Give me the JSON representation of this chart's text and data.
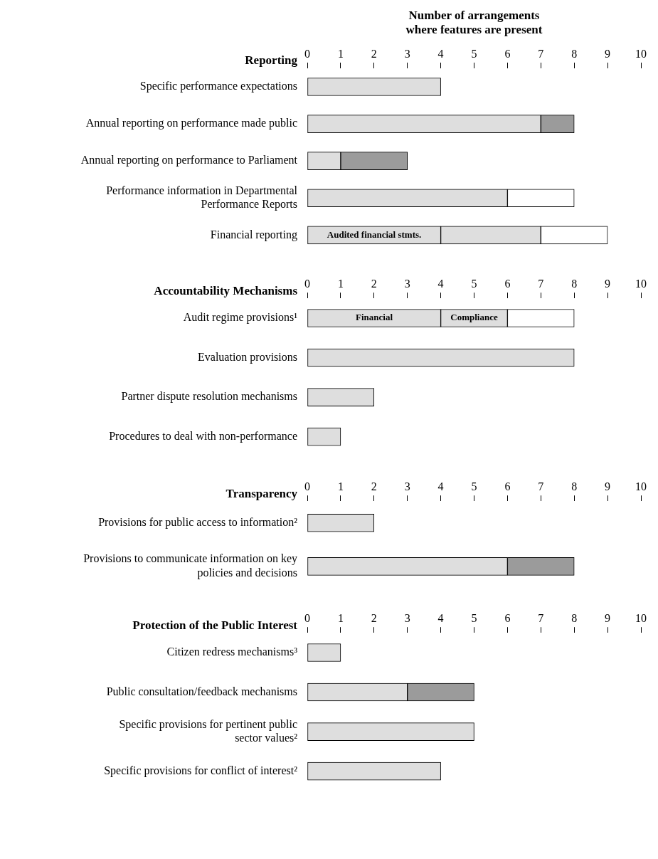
{
  "chart_data": [
    {
      "type": "bar",
      "orientation": "horizontal",
      "stacked": true,
      "title": "Reporting",
      "xlabel": "Number of arrangements where features are present",
      "categories": [
        "Specific performance expectations",
        "Annual reporting on performance made public",
        "Annual reporting on performance to Parliament",
        "Performance information in Departmental Performance Reports",
        "Financial reporting"
      ],
      "xlim": [
        0,
        10
      ],
      "xticks": [
        0,
        1,
        2,
        3,
        4,
        5,
        6,
        7,
        8,
        9,
        10
      ],
      "grid": false,
      "legend": false,
      "series": [
        {
          "color": "#dedede",
          "values": [
            4,
            7,
            1,
            6,
            4
          ],
          "value_labels": [
            null,
            null,
            null,
            null,
            "Audited financial stmts."
          ]
        },
        {
          "color": "#dedede",
          "values": [
            null,
            null,
            null,
            null,
            3
          ]
        },
        {
          "color": "#9b9b9b",
          "values": [
            null,
            1,
            2,
            null,
            null
          ]
        },
        {
          "color": "#ffffff",
          "values": [
            null,
            null,
            null,
            2,
            2
          ]
        }
      ]
    },
    {
      "type": "bar",
      "orientation": "horizontal",
      "stacked": true,
      "title": "Accountability Mechanisms",
      "categories": [
        "Audit regime provisions¹",
        "Evaluation provisions",
        "Partner dispute resolution mechanisms",
        "Procedures to deal with non-performance"
      ],
      "xlim": [
        0,
        10
      ],
      "xticks": [
        0,
        1,
        2,
        3,
        4,
        5,
        6,
        7,
        8,
        9,
        10
      ],
      "grid": false,
      "legend": false,
      "series": [
        {
          "color": "#dedede",
          "values": [
            4,
            8,
            2,
            1
          ],
          "value_labels": [
            "Financial",
            null,
            null,
            null
          ]
        },
        {
          "color": "#dedede",
          "values": [
            2,
            null,
            null,
            null
          ],
          "value_labels": [
            "Compliance",
            null,
            null,
            null
          ]
        },
        {
          "color": "#ffffff",
          "values": [
            2,
            null,
            null,
            null
          ]
        }
      ]
    },
    {
      "type": "bar",
      "orientation": "horizontal",
      "stacked": true,
      "title": "Transparency",
      "categories": [
        "Provisions for public access to information²",
        "Provisions to communicate information on key policies and decisions"
      ],
      "xlim": [
        0,
        10
      ],
      "xticks": [
        0,
        1,
        2,
        3,
        4,
        5,
        6,
        7,
        8,
        9,
        10
      ],
      "grid": false,
      "legend": false,
      "series": [
        {
          "color": "#dedede",
          "values": [
            2,
            6
          ]
        },
        {
          "color": "#9b9b9b",
          "values": [
            null,
            2
          ]
        }
      ]
    },
    {
      "type": "bar",
      "orientation": "horizontal",
      "stacked": true,
      "title": "Protection of the Public Interest",
      "categories": [
        "Citizen redress mechanisms³",
        "Public consultation/feedback mechanisms",
        "Specific provisions for pertinent public sector values²",
        "Specific provisions for conflict of interest²"
      ],
      "xlim": [
        0,
        10
      ],
      "xticks": [
        0,
        1,
        2,
        3,
        4,
        5,
        6,
        7,
        8,
        9,
        10
      ],
      "grid": false,
      "legend": false,
      "series": [
        {
          "color": "#dedede",
          "values": [
            1,
            3,
            5,
            4
          ]
        },
        {
          "color": "#9b9b9b",
          "values": [
            null,
            2,
            null,
            null
          ]
        }
      ]
    }
  ]
}
